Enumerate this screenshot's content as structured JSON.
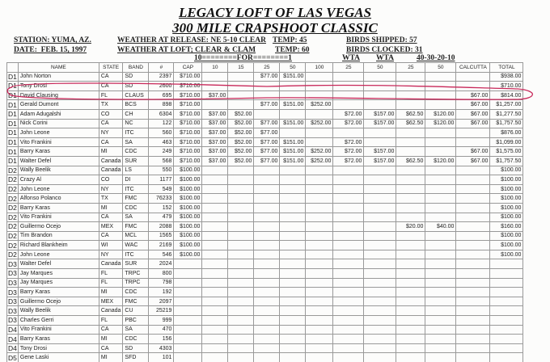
{
  "header": {
    "title": "LEGACY LOFT OF LAS VEGAS",
    "subtitle": "300 MILE CRAPSHOOT CLASSIC",
    "station": "STATION: YUMA, AZ.",
    "date": "DATE:  FEB. 15, 1997",
    "weather_release": "WEATHER AT RELEASE: NE 5-10 CLEAR",
    "weather_loft": "WEATHER AT LOFT; CLEAR & CLAM",
    "temp_release": "TEMP: 45",
    "temp_loft": "TEMP: 60",
    "birds_shipped": "BIRDS SHIPPED: 57",
    "birds_clocked": "BIRDS CLOCKED: 31",
    "for_line": "10========FOR========1",
    "wta1": "WTA",
    "wta2": "WTA",
    "split": "40-30-20-10"
  },
  "columns": [
    "",
    "NAME",
    "STATE",
    "BAND",
    "#",
    "CAP",
    "10",
    "15",
    "25",
    "50",
    "100",
    "25",
    "50",
    "25",
    "50",
    "CALCUTTA",
    "TOTAL"
  ],
  "rows": [
    [
      "D1",
      "John Norton",
      "CA",
      "SD",
      "2397",
      "$710.00",
      "",
      "",
      "$77.00",
      "$151.00",
      "",
      "",
      "",
      "",
      "",
      "",
      "$938.00"
    ],
    [
      "D1",
      "Tony Drosi",
      "CA",
      "SD",
      "2600",
      "$710.00",
      "",
      "",
      "",
      "",
      "",
      "",
      "",
      "",
      "",
      "",
      "$710.00"
    ],
    [
      "D1",
      "David Clausing",
      "FL",
      "CLAUS",
      "695",
      "$710.00",
      "$37.00",
      "",
      "",
      "",
      "",
      "",
      "",
      "",
      "",
      "$67.00",
      "$814.00"
    ],
    [
      "D1",
      "Gerald Dumont",
      "TX",
      "BCS",
      "898",
      "$710.00",
      "",
      "",
      "$77.00",
      "$151.00",
      "$252.00",
      "",
      "",
      "",
      "",
      "$67.00",
      "$1,257.00"
    ],
    [
      "D1",
      "Adam Adugalshi",
      "CO",
      "CH",
      "6304",
      "$710.00",
      "$37.00",
      "$52.00",
      "",
      "",
      "",
      "$72.00",
      "$157.00",
      "$62.50",
      "$120.00",
      "$67.00",
      "$1,277.50"
    ],
    [
      "D1",
      "Nick Corini",
      "CA",
      "NC",
      "122",
      "$710.00",
      "$37.00",
      "$52.00",
      "$77.00",
      "$151.00",
      "$252.00",
      "$72.00",
      "$157.00",
      "$62.50",
      "$120.00",
      "$67.00",
      "$1,757.50"
    ],
    [
      "D1",
      "John Leone",
      "NY",
      "ITC",
      "560",
      "$710.00",
      "$37.00",
      "$52.00",
      "$77.00",
      "",
      "",
      "",
      "",
      "",
      "",
      "",
      "$876.00"
    ],
    [
      "D1",
      "Vito Frankini",
      "CA",
      "SA",
      "463",
      "$710.00",
      "$37.00",
      "$52.00",
      "$77.00",
      "$151.00",
      "",
      "$72.00",
      "",
      "",
      "",
      "",
      "$1,099.00"
    ],
    [
      "D1",
      "Barry Karas",
      "MI",
      "CDC",
      "249",
      "$710.00",
      "$37.00",
      "$52.00",
      "$77.00",
      "$151.00",
      "$252.00",
      "$72.00",
      "$157.00",
      "",
      "",
      "$67.00",
      "$1,575.00"
    ],
    [
      "D1",
      "Walter Defel",
      "Canada",
      "SUR",
      "568",
      "$710.00",
      "$37.00",
      "$52.00",
      "$77.00",
      "$151.00",
      "$252.00",
      "$72.00",
      "$157.00",
      "$62.50",
      "$120.00",
      "$67.00",
      "$1,757.50"
    ],
    [
      "D2",
      "Wally Beelik",
      "Canada",
      "LS",
      "550",
      "$100.00",
      "",
      "",
      "",
      "",
      "",
      "",
      "",
      "",
      "",
      "",
      "$100.00"
    ],
    [
      "D2",
      "Crazy Al",
      "CO",
      "DI",
      "1177",
      "$100.00",
      "",
      "",
      "",
      "",
      "",
      "",
      "",
      "",
      "",
      "",
      "$100.00"
    ],
    [
      "D2",
      "John Leone",
      "NY",
      "ITC",
      "549",
      "$100.00",
      "",
      "",
      "",
      "",
      "",
      "",
      "",
      "",
      "",
      "",
      "$100.00"
    ],
    [
      "D2",
      "Alfonso Polanco",
      "TX",
      "FMC",
      "76233",
      "$100.00",
      "",
      "",
      "",
      "",
      "",
      "",
      "",
      "",
      "",
      "",
      "$100.00"
    ],
    [
      "D2",
      "Barry Karas",
      "MI",
      "CDC",
      "152",
      "$100.00",
      "",
      "",
      "",
      "",
      "",
      "",
      "",
      "",
      "",
      "",
      "$100.00"
    ],
    [
      "D2",
      "Vito Frankini",
      "CA",
      "SA",
      "479",
      "$100.00",
      "",
      "",
      "",
      "",
      "",
      "",
      "",
      "",
      "",
      "",
      "$100.00"
    ],
    [
      "D2",
      "Guillermo Ocejo",
      "MEX",
      "FMC",
      "2088",
      "$100.00",
      "",
      "",
      "",
      "",
      "",
      "",
      "",
      "$20.00",
      "$40.00",
      "",
      "$160.00"
    ],
    [
      "D2",
      "Tim Brandon",
      "CA",
      "MCL",
      "1565",
      "$100.00",
      "",
      "",
      "",
      "",
      "",
      "",
      "",
      "",
      "",
      "",
      "$100.00"
    ],
    [
      "D2",
      "Richard Blankheim",
      "WI",
      "WAC",
      "2169",
      "$100.00",
      "",
      "",
      "",
      "",
      "",
      "",
      "",
      "",
      "",
      "",
      "$100.00"
    ],
    [
      "D2",
      "John Leone",
      "NY",
      "ITC",
      "546",
      "$100.00",
      "",
      "",
      "",
      "",
      "",
      "",
      "",
      "",
      "",
      "",
      "$100.00"
    ],
    [
      "D3",
      "Walter Defel",
      "Canada",
      "SUR",
      "2024",
      "",
      "",
      "",
      "",
      "",
      "",
      "",
      "",
      "",
      "",
      "",
      ""
    ],
    [
      "D3",
      "Jay Marques",
      "FL",
      "TRPC",
      "800",
      "",
      "",
      "",
      "",
      "",
      "",
      "",
      "",
      "",
      "",
      "",
      ""
    ],
    [
      "D3",
      "Jay Marques",
      "FL",
      "TRPC",
      "798",
      "",
      "",
      "",
      "",
      "",
      "",
      "",
      "",
      "",
      "",
      "",
      ""
    ],
    [
      "D3",
      "Barry Karas",
      "MI",
      "CDC",
      "192",
      "",
      "",
      "",
      "",
      "",
      "",
      "",
      "",
      "",
      "",
      "",
      ""
    ],
    [
      "D3",
      "Guillermo Ocejo",
      "MEX",
      "FMC",
      "2097",
      "",
      "",
      "",
      "",
      "",
      "",
      "",
      "",
      "",
      "",
      "",
      ""
    ],
    [
      "D3",
      "Wally Beelik",
      "Canada",
      "CU",
      "25219",
      "",
      "",
      "",
      "",
      "",
      "",
      "",
      "",
      "",
      "",
      "",
      ""
    ],
    [
      "D3",
      "Charles Gerri",
      "FL",
      "PBC",
      "999",
      "",
      "",
      "",
      "",
      "",
      "",
      "",
      "",
      "",
      "",
      "",
      ""
    ],
    [
      "D4",
      "Vito Frankini",
      "CA",
      "SA",
      "470",
      "",
      "",
      "",
      "",
      "",
      "",
      "",
      "",
      "",
      "",
      "",
      ""
    ],
    [
      "D4",
      "Barry Karas",
      "MI",
      "CDC",
      "156",
      "",
      "",
      "",
      "",
      "",
      "",
      "",
      "",
      "",
      "",
      "",
      ""
    ],
    [
      "D4",
      "Tony Drosi",
      "CA",
      "SD",
      "4303",
      "",
      "",
      "",
      "",
      "",
      "",
      "",
      "",
      "",
      "",
      "",
      ""
    ],
    [
      "D5",
      "Gene Laski",
      "MI",
      "SFD",
      "101",
      "",
      "",
      "",
      "",
      "",
      "",
      "",
      "",
      "",
      "",
      "",
      ""
    ]
  ],
  "annotation_color": "#c8285a"
}
